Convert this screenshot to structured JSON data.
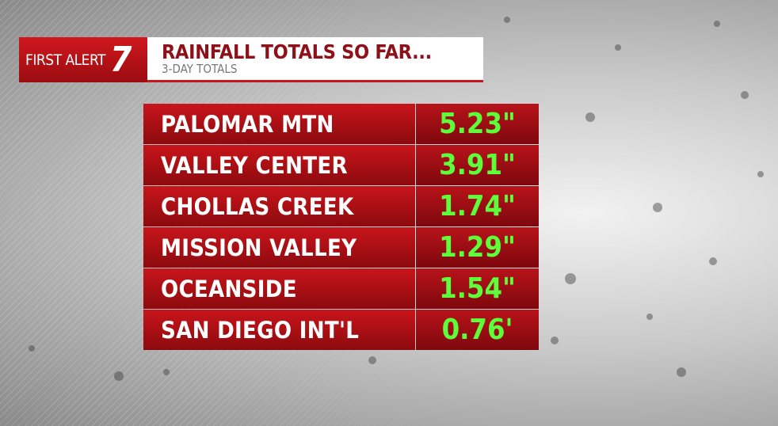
{
  "header": {
    "brand": "FIRST ALERT",
    "logo": "7",
    "title": "RAINFALL TOTALS SO FAR...",
    "subtitle": "3-DAY TOTALS"
  },
  "table": {
    "rows": [
      [
        "PALOMAR MTN",
        "5.23\""
      ],
      [
        "VALLEY CENTER",
        "3.91\""
      ],
      [
        "CHOLLAS CREEK",
        "1.74\""
      ],
      [
        "MISSION VALLEY",
        "1.29\""
      ],
      [
        "OCEANSIDE",
        "1.54\""
      ],
      [
        "SAN DIEGO INT'L",
        "0.76'"
      ]
    ]
  }
}
